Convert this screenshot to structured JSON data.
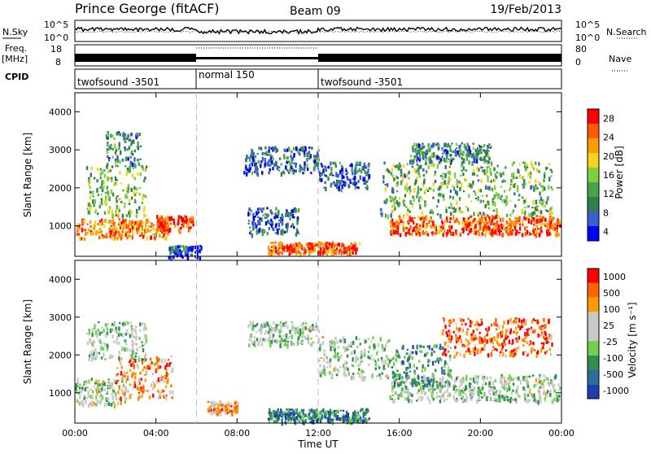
{
  "header": {
    "station": "Prince George (fitACF)",
    "beam": "Beam 09",
    "date": "19/Feb/2013"
  },
  "left_labels": {
    "nsky": "N.Sky",
    "freq_top": "Freq.",
    "freq_unit": "[MHz]",
    "cpid": "CPID"
  },
  "right_labels": {
    "nsearch": "N.Search",
    "nave": "Nave"
  },
  "summary_axes": {
    "noise_ticks": [
      "10^5",
      "10^0"
    ],
    "freq_ticks": [
      "18",
      "8"
    ],
    "nave_ticks": [
      "80",
      "0"
    ]
  },
  "cpid_segments": [
    {
      "label": "twofsound -3501",
      "start": 0,
      "end": 6
    },
    {
      "label": "normal 150",
      "start": 6,
      "end": 12
    },
    {
      "label": "twofsound -3501",
      "start": 12,
      "end": 24
    }
  ],
  "colors": {
    "power_scale": [
      "#0000ff",
      "#3a5fcd",
      "#2f7f4f",
      "#49a24d",
      "#7fcf3f",
      "#f7d31a",
      "#ff9a00",
      "#ff5a00",
      "#ff0000"
    ],
    "velocity_scale": [
      "#1f3fae",
      "#2c6e9a",
      "#2f8f4f",
      "#6fd04f",
      "#c8c8c8",
      "#c8c8c8",
      "#ff9a00",
      "#ff6400",
      "#ff0000"
    ]
  },
  "chart_data": [
    {
      "type": "heatmap",
      "ylabel": "Slant Range [km]",
      "xlim": [
        0,
        24
      ],
      "ylim": [
        200,
        4500
      ],
      "yticks": [
        1000,
        2000,
        3000,
        4000
      ],
      "colorbar": {
        "label": "Power [dB]",
        "ticks": [
          28,
          24,
          20,
          16,
          12,
          8,
          4
        ],
        "range": [
          0,
          30
        ]
      },
      "regions": [
        {
          "t0": 0.0,
          "t1": 4.6,
          "r0": 700,
          "r1": 1200,
          "level": 0.75
        },
        {
          "t0": 0.5,
          "t1": 3.5,
          "r0": 1300,
          "r1": 2600,
          "level": 0.45
        },
        {
          "t0": 1.5,
          "t1": 3.2,
          "r0": 2600,
          "r1": 3500,
          "level": 0.3
        },
        {
          "t0": 4.0,
          "t1": 5.8,
          "r0": 900,
          "r1": 1300,
          "level": 0.9
        },
        {
          "t0": 4.6,
          "t1": 6.2,
          "r0": 200,
          "r1": 500,
          "level": 0.15
        },
        {
          "t0": 8.3,
          "t1": 12.0,
          "r0": 2400,
          "r1": 3100,
          "level": 0.25
        },
        {
          "t0": 12.0,
          "t1": 14.5,
          "r0": 2000,
          "r1": 2700,
          "level": 0.2
        },
        {
          "t0": 9.5,
          "t1": 14.0,
          "r0": 300,
          "r1": 600,
          "level": 0.85
        },
        {
          "t0": 8.5,
          "t1": 11.0,
          "r0": 800,
          "r1": 1500,
          "level": 0.2
        },
        {
          "t0": 15.5,
          "t1": 23.9,
          "r0": 800,
          "r1": 1300,
          "level": 0.85
        },
        {
          "t0": 15.0,
          "t1": 23.5,
          "r0": 1300,
          "r1": 2700,
          "level": 0.4
        },
        {
          "t0": 16.5,
          "t1": 20.5,
          "r0": 2700,
          "r1": 3200,
          "level": 0.3
        }
      ]
    },
    {
      "type": "heatmap",
      "ylabel": "Slant Range [km]",
      "xlabel": "Time UT",
      "xlim": [
        0,
        24
      ],
      "ylim": [
        200,
        4500
      ],
      "yticks": [
        1000,
        2000,
        3000,
        4000
      ],
      "xticks": [
        "00:00",
        "04:00",
        "08:00",
        "12:00",
        "16:00",
        "20:00",
        "00:00"
      ],
      "colorbar": {
        "label": "Velocity [m s⁻¹]",
        "ticks": [
          1000,
          500,
          100,
          25,
          -25,
          -100,
          -500,
          -1000
        ]
      },
      "regions": [
        {
          "t0": 0.0,
          "t1": 2.5,
          "r0": 700,
          "r1": 1400,
          "level": 0.5
        },
        {
          "t0": 2.0,
          "t1": 4.8,
          "r0": 900,
          "r1": 2000,
          "level": 0.75
        },
        {
          "t0": 0.5,
          "t1": 3.5,
          "r0": 1900,
          "r1": 2900,
          "level": 0.45
        },
        {
          "t0": 8.5,
          "t1": 12.0,
          "r0": 2300,
          "r1": 2900,
          "level": 0.45
        },
        {
          "t0": 12.0,
          "t1": 15.5,
          "r0": 1400,
          "r1": 2500,
          "level": 0.45
        },
        {
          "t0": 9.5,
          "t1": 14.5,
          "r0": 250,
          "r1": 600,
          "level": 0.2
        },
        {
          "t0": 6.5,
          "t1": 8.0,
          "r0": 500,
          "r1": 800,
          "level": 0.75
        },
        {
          "t0": 15.5,
          "t1": 23.9,
          "r0": 800,
          "r1": 1500,
          "level": 0.45
        },
        {
          "t0": 15.5,
          "t1": 18.5,
          "r0": 1200,
          "r1": 2300,
          "level": 0.3
        },
        {
          "t0": 18.0,
          "t1": 23.5,
          "r0": 2000,
          "r1": 3000,
          "level": 0.85
        }
      ]
    }
  ]
}
